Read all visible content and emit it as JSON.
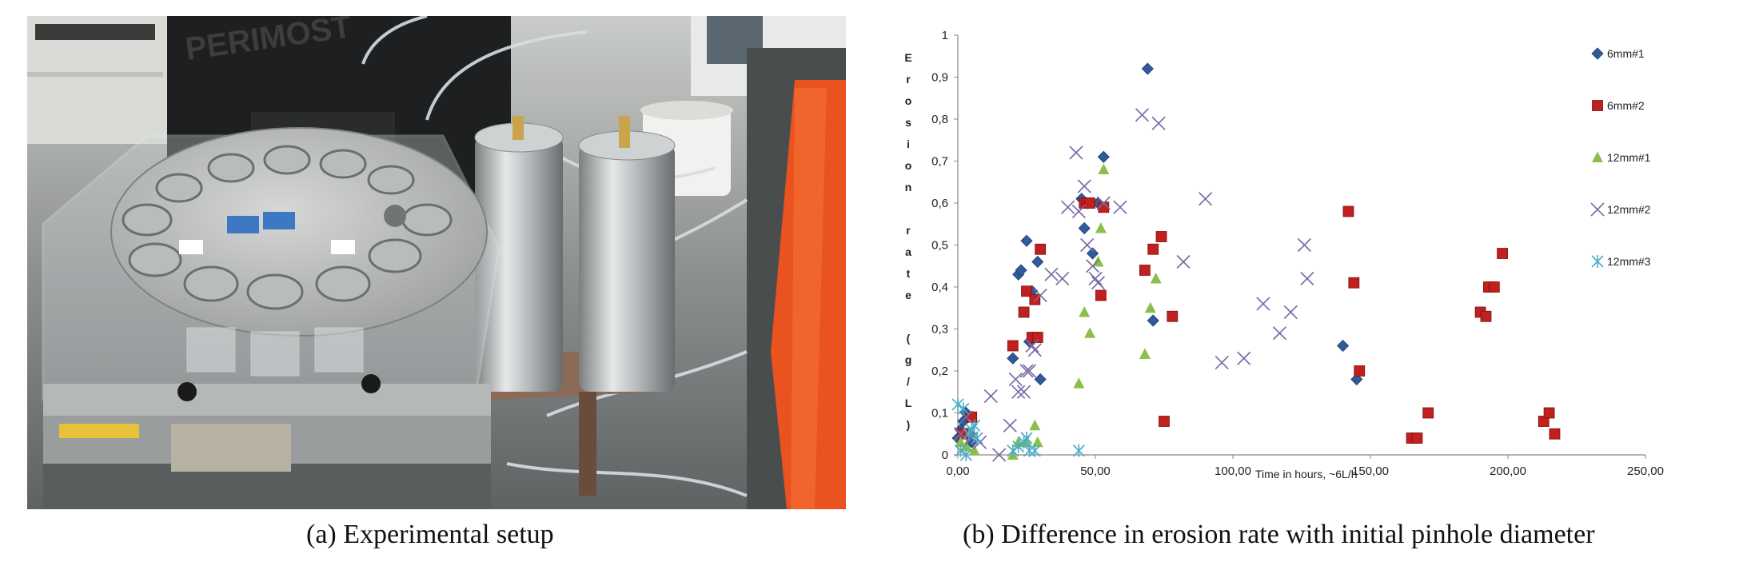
{
  "captions": {
    "a": "(a) Experimental setup",
    "b": "(b) Difference in erosion rate with initial pinhole diameter"
  },
  "photo": {
    "label_left_tank": "PERIMOST"
  },
  "chart_data": {
    "type": "scatter",
    "title": "",
    "xlabel": "Time in hours, ~6L/h",
    "ylabel": "Erosion rate (g/L)",
    "xlim": [
      0,
      250
    ],
    "ylim": [
      0,
      1
    ],
    "x_ticks": [
      "0,00",
      "50,00",
      "100,00",
      "150,00",
      "200,00",
      "250,00"
    ],
    "y_ticks": [
      "0",
      "0,1",
      "0,2",
      "0,3",
      "0,4",
      "0,5",
      "0,6",
      "0,7",
      "0,8",
      "0,9",
      "1"
    ],
    "legend_position": "right",
    "series": [
      {
        "name": "6mm#1",
        "color": "#2f5b9a",
        "marker": "diamond",
        "x": [
          0,
          1,
          2,
          3,
          4,
          5,
          20,
          22,
          23,
          25,
          26,
          27,
          29,
          30,
          45,
          46,
          47,
          49,
          51,
          53,
          69,
          71,
          140,
          145
        ],
        "y": [
          0.04,
          0.06,
          0.08,
          0.1,
          0.05,
          0.03,
          0.23,
          0.43,
          0.44,
          0.51,
          0.27,
          0.39,
          0.46,
          0.18,
          0.61,
          0.54,
          0.6,
          0.48,
          0.6,
          0.71,
          0.92,
          0.32,
          0.26,
          0.18
        ]
      },
      {
        "name": "6mm#2",
        "color": "#c0201e",
        "marker": "square",
        "x": [
          2,
          5,
          20,
          24,
          25,
          27,
          28,
          29,
          30,
          46,
          47,
          48,
          52,
          53,
          68,
          71,
          74,
          78,
          75,
          142,
          144,
          146,
          165,
          167,
          171,
          190,
          192,
          193,
          195,
          198,
          213,
          215,
          217
        ],
        "y": [
          0.05,
          0.09,
          0.26,
          0.34,
          0.39,
          0.28,
          0.37,
          0.28,
          0.49,
          0.6,
          0.6,
          0.6,
          0.38,
          0.59,
          0.44,
          0.49,
          0.52,
          0.33,
          0.08,
          0.58,
          0.41,
          0.2,
          0.04,
          0.04,
          0.1,
          0.34,
          0.33,
          0.4,
          0.4,
          0.48,
          0.08,
          0.1,
          0.05
        ]
      },
      {
        "name": "12mm#1",
        "color": "#8bbf4a",
        "marker": "triangle",
        "x": [
          1,
          3,
          6,
          20,
          22,
          25,
          28,
          29,
          44,
          46,
          48,
          51,
          52,
          53,
          68,
          70,
          72
        ],
        "y": [
          0.03,
          0.02,
          0.01,
          0.0,
          0.03,
          0.03,
          0.07,
          0.03,
          0.17,
          0.34,
          0.29,
          0.46,
          0.54,
          0.68,
          0.24,
          0.35,
          0.42
        ]
      },
      {
        "name": "12mm#2",
        "color": "#7a6aa7",
        "marker": "x",
        "x": [
          1,
          3,
          5,
          8,
          12,
          15,
          19,
          21,
          22,
          24,
          25,
          26,
          27,
          28,
          30,
          34,
          38,
          40,
          43,
          44,
          46,
          47,
          49,
          50,
          51,
          53,
          59,
          67,
          73,
          82,
          90,
          96,
          104,
          111,
          117,
          121,
          126,
          127
        ],
        "y": [
          0.05,
          0.09,
          0.04,
          0.03,
          0.14,
          0.0,
          0.07,
          0.18,
          0.15,
          0.15,
          0.2,
          0.2,
          0.26,
          0.25,
          0.38,
          0.43,
          0.42,
          0.59,
          0.72,
          0.58,
          0.64,
          0.5,
          0.45,
          0.42,
          0.41,
          0.6,
          0.59,
          0.81,
          0.79,
          0.46,
          0.61,
          0.22,
          0.23,
          0.36,
          0.29,
          0.34,
          0.5,
          0.42
        ]
      },
      {
        "name": "12mm#3",
        "color": "#4bacc6",
        "marker": "asterisk",
        "x": [
          0,
          1,
          2,
          3,
          4,
          5,
          6,
          7,
          20,
          22,
          24,
          25,
          26,
          28,
          44
        ],
        "y": [
          0.12,
          0.01,
          0.11,
          0.0,
          0.05,
          0.06,
          0.07,
          0.04,
          0.01,
          0.02,
          0.03,
          0.04,
          0.01,
          0.01,
          0.01
        ]
      }
    ]
  }
}
